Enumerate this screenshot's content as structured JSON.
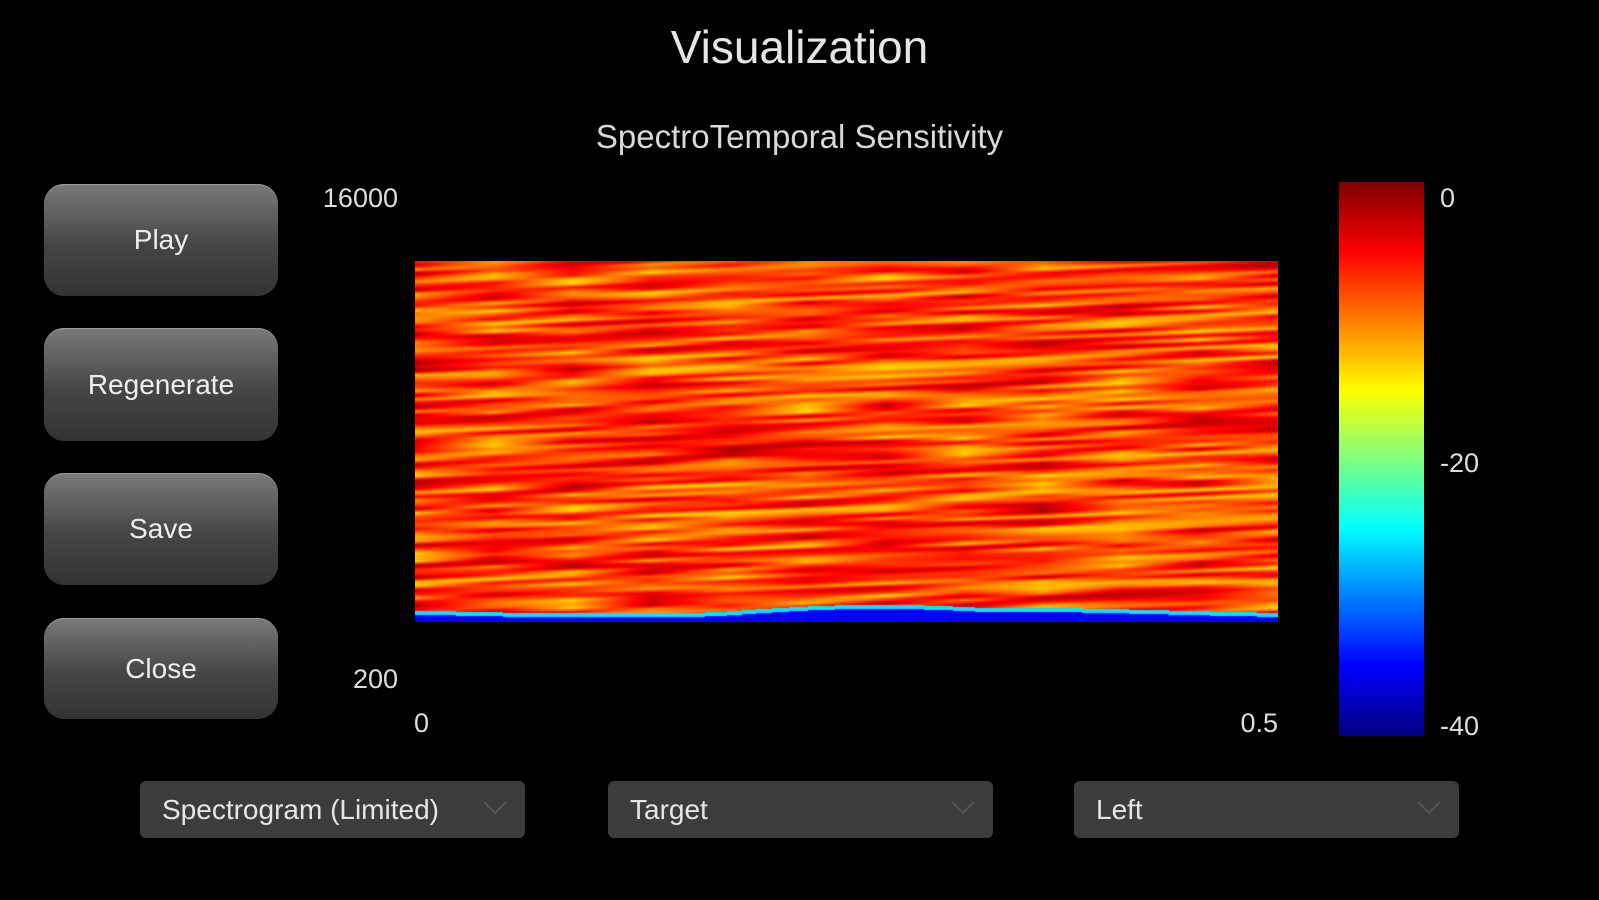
{
  "header": {
    "title": "Visualization"
  },
  "buttons": [
    {
      "label": "Play"
    },
    {
      "label": "Regenerate"
    },
    {
      "label": "Save"
    },
    {
      "label": "Close"
    }
  ],
  "dropdowns": [
    {
      "value": "Spectrogram (Limited)"
    },
    {
      "value": "Target"
    },
    {
      "value": "Left"
    }
  ],
  "chart_data": {
    "type": "heatmap",
    "title": "SpectroTemporal Sensitivity",
    "x_ticks": [
      "0",
      "0.5"
    ],
    "xlim": [
      0,
      0.5
    ],
    "y_ticks": [
      "16000",
      "200"
    ],
    "ylim": [
      200,
      16000
    ],
    "colorbar": {
      "ticks": [
        "0",
        "-20",
        "-40"
      ],
      "range": [
        -40,
        0
      ],
      "colormap": "jet"
    },
    "grid": false
  }
}
